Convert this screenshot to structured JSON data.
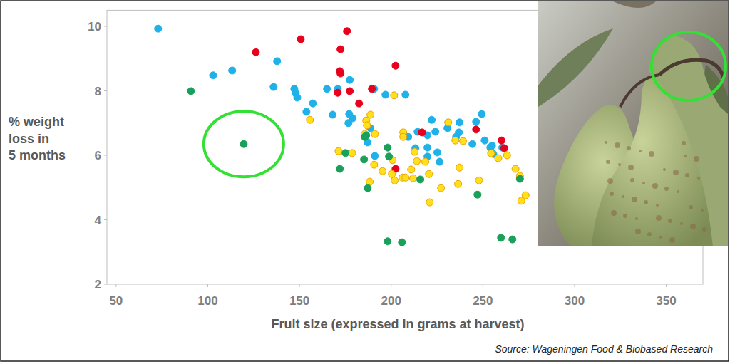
{
  "chart_data": {
    "type": "scatter",
    "x_label": "Fruit size (expressed in grams at harvest)",
    "y_label": "% weight loss in 5 months",
    "source": "Source: Wageningen Food & Biobased Research",
    "xlim": [
      45,
      370
    ],
    "ylim": [
      2,
      10.5
    ],
    "xticks": [
      50,
      100,
      150,
      200,
      250,
      300,
      350
    ],
    "yticks": [
      2,
      4,
      6,
      8,
      10
    ],
    "grid": false,
    "series": [
      {
        "color": "#1fb1e8",
        "marker": "circle",
        "x": [
          72.9,
          102.9,
          113.3,
          137.8,
          135.9,
          147.2,
          148,
          148.8,
          153.8,
          157.3,
          165,
          168.1,
          170.9,
          176.7,
          177.4,
          177.1,
          179,
          190.7,
          188.7,
          187.2,
          191.1,
          196.9,
          207.8,
          214.4,
          219.8,
          222.1,
          224.1,
          225.2,
          226.4,
          219.8,
          230.7,
          235.4,
          237.3,
          244.3,
          249.4,
          246.3,
          251,
          254.1,
          255.7,
          260.6,
          209.3,
          213.2,
          219.8,
          236.9,
          255
        ],
        "values": [
          9.93,
          8.48,
          8.63,
          8.92,
          8.12,
          8.06,
          7.92,
          7.79,
          7.35,
          7.61,
          8.06,
          7.26,
          8.06,
          7.0,
          8.34,
          7.28,
          7.15,
          8.06,
          6.84,
          6.4,
          5.98,
          7.88,
          7.88,
          6.73,
          6.62,
          7.1,
          6.73,
          6.09,
          5.8,
          6.24,
          6.84,
          6.57,
          7.02,
          6.35,
          7.28,
          7.04,
          6.46,
          6.24,
          6.04,
          6.24,
          6.57,
          6.22,
          5.96,
          6.71,
          6.3
        ]
      },
      {
        "color": "#e8001c",
        "marker": "circle",
        "x": [
          126.2,
          150.7,
          172.4,
          172,
          172.4,
          175.9,
          177.4,
          182.5,
          170.9,
          189.5,
          202.4,
          202.4,
          216.8,
          246.3,
          260.2,
          261.7
        ],
        "values": [
          9.2,
          9.6,
          9.29,
          8.61,
          8.54,
          9.85,
          7.99,
          7.61,
          7.94,
          8.06,
          8.78,
          5.58,
          6.71,
          6.8,
          6.46,
          6.22
        ]
      },
      {
        "color": "#ffe01a",
        "marker": "circle",
        "x": [
          201.6,
          155.7,
          171.3,
          178.7,
          186.4,
          188.7,
          186.8,
          185.6,
          191.1,
          190.7,
          195.3,
          200.4,
          200.8,
          206.2,
          207.8,
          210.9,
          214,
          206.6,
          206.6,
          212.8,
          218.6,
          221,
          227.2,
          231.1,
          235,
          239.2,
          237.3,
          236.5,
          247.9,
          254.5,
          258.4,
          263.2,
          267.8,
          270.2,
          273.3,
          271,
          220.6,
          188.3,
          201.9,
          212
        ],
        "values": [
          7.86,
          7.1,
          6.13,
          6.07,
          7.08,
          7.26,
          6.93,
          6.66,
          6.66,
          5.71,
          5.51,
          5.42,
          5.85,
          5.31,
          5.31,
          5.56,
          5.82,
          6.71,
          6.57,
          6.11,
          5.8,
          4.54,
          4.98,
          7.02,
          6.46,
          6.44,
          5.62,
          5.11,
          5.22,
          6.06,
          5.91,
          6.0,
          5.58,
          5.36,
          4.76,
          4.59,
          5.42,
          5.18,
          5.22,
          5.29
        ]
      },
      {
        "color": "#1aa05a",
        "marker": "circle",
        "x": [
          90.8,
          119.6,
          185.6,
          186.4,
          172,
          175.1,
          185.2,
          187.2,
          198.1,
          198.1,
          198.8,
          205.9,
          215.9,
          247.1,
          259.9,
          266.1,
          270.2
        ],
        "values": [
          7.99,
          6.35,
          6.57,
          6.62,
          5.58,
          6.07,
          5.87,
          4.98,
          6.24,
          3.33,
          5.96,
          3.3,
          5.25,
          4.78,
          3.44,
          3.39,
          5.27
        ]
      }
    ]
  }
}
